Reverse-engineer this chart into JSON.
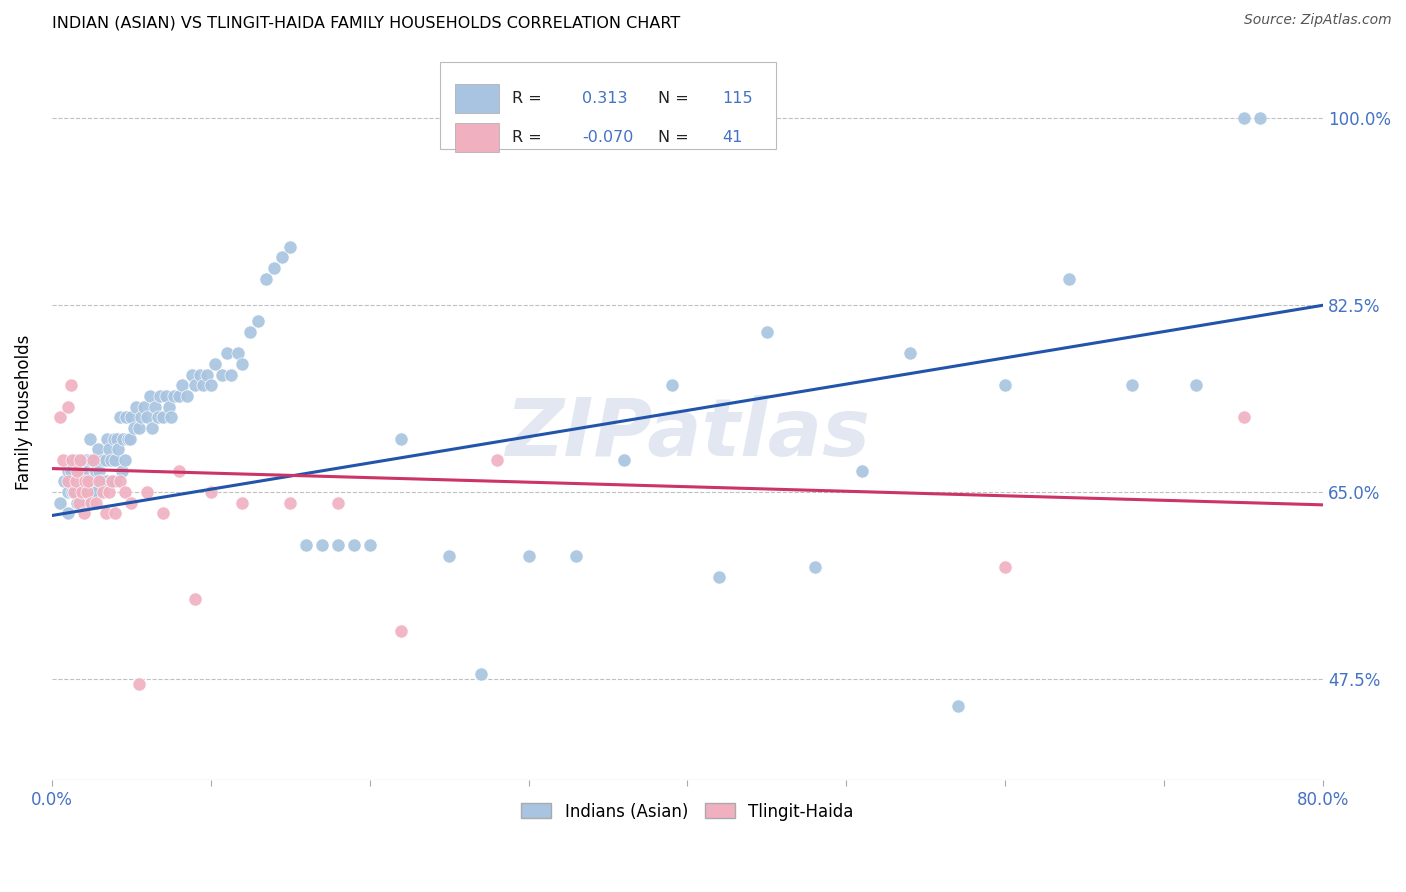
{
  "title": "INDIAN (ASIAN) VS TLINGIT-HAIDA FAMILY HOUSEHOLDS CORRELATION CHART",
  "source": "Source: ZipAtlas.com",
  "ylabel": "Family Households",
  "xlim": [
    0.0,
    0.8
  ],
  "ylim": [
    0.38,
    1.07
  ],
  "xtick_positions": [
    0.0,
    0.1,
    0.2,
    0.3,
    0.4,
    0.5,
    0.6,
    0.7,
    0.8
  ],
  "xticklabels": [
    "0.0%",
    "",
    "",
    "",
    "",
    "",
    "",
    "",
    "80.0%"
  ],
  "ytick_values": [
    0.475,
    0.65,
    0.825,
    1.0
  ],
  "ytick_labels": [
    "47.5%",
    "65.0%",
    "82.5%",
    "100.0%"
  ],
  "blue_R": 0.313,
  "blue_N": 115,
  "pink_R": -0.07,
  "pink_N": 41,
  "blue_color": "#a8c4e0",
  "pink_color": "#f0b0c0",
  "blue_line_color": "#2255aa",
  "pink_line_color": "#cc3366",
  "legend_label_blue": "Indians (Asian)",
  "legend_label_pink": "Tlingit-Haida",
  "watermark": "ZIPatlas",
  "blue_line_x": [
    0.0,
    0.8
  ],
  "blue_line_y": [
    0.628,
    0.825
  ],
  "pink_line_x": [
    0.0,
    0.8
  ],
  "pink_line_y": [
    0.672,
    0.638
  ],
  "blue_scatter_x": [
    0.005,
    0.008,
    0.01,
    0.01,
    0.01,
    0.012,
    0.013,
    0.014,
    0.015,
    0.015,
    0.016,
    0.017,
    0.018,
    0.018,
    0.019,
    0.02,
    0.02,
    0.021,
    0.022,
    0.022,
    0.023,
    0.023,
    0.024,
    0.025,
    0.025,
    0.026,
    0.027,
    0.027,
    0.028,
    0.028,
    0.029,
    0.03,
    0.031,
    0.032,
    0.033,
    0.034,
    0.035,
    0.035,
    0.036,
    0.037,
    0.038,
    0.039,
    0.04,
    0.04,
    0.041,
    0.042,
    0.043,
    0.044,
    0.045,
    0.046,
    0.047,
    0.048,
    0.049,
    0.05,
    0.052,
    0.053,
    0.055,
    0.056,
    0.058,
    0.06,
    0.062,
    0.063,
    0.065,
    0.067,
    0.068,
    0.07,
    0.072,
    0.074,
    0.075,
    0.077,
    0.08,
    0.082,
    0.085,
    0.088,
    0.09,
    0.093,
    0.095,
    0.098,
    0.1,
    0.103,
    0.107,
    0.11,
    0.113,
    0.117,
    0.12,
    0.125,
    0.13,
    0.135,
    0.14,
    0.145,
    0.15,
    0.16,
    0.17,
    0.18,
    0.19,
    0.2,
    0.22,
    0.25,
    0.27,
    0.3,
    0.33,
    0.36,
    0.39,
    0.42,
    0.45,
    0.48,
    0.51,
    0.54,
    0.57,
    0.6,
    0.64,
    0.68,
    0.72,
    0.75,
    0.76
  ],
  "blue_scatter_y": [
    0.64,
    0.66,
    0.65,
    0.67,
    0.63,
    0.67,
    0.65,
    0.65,
    0.65,
    0.68,
    0.64,
    0.67,
    0.65,
    0.67,
    0.66,
    0.65,
    0.68,
    0.66,
    0.68,
    0.64,
    0.67,
    0.65,
    0.7,
    0.66,
    0.68,
    0.65,
    0.67,
    0.68,
    0.67,
    0.65,
    0.69,
    0.67,
    0.66,
    0.68,
    0.66,
    0.68,
    0.7,
    0.66,
    0.69,
    0.68,
    0.66,
    0.7,
    0.68,
    0.66,
    0.7,
    0.69,
    0.72,
    0.67,
    0.7,
    0.68,
    0.72,
    0.7,
    0.7,
    0.72,
    0.71,
    0.73,
    0.71,
    0.72,
    0.73,
    0.72,
    0.74,
    0.71,
    0.73,
    0.72,
    0.74,
    0.72,
    0.74,
    0.73,
    0.72,
    0.74,
    0.74,
    0.75,
    0.74,
    0.76,
    0.75,
    0.76,
    0.75,
    0.76,
    0.75,
    0.77,
    0.76,
    0.78,
    0.76,
    0.78,
    0.77,
    0.8,
    0.81,
    0.85,
    0.86,
    0.87,
    0.88,
    0.6,
    0.6,
    0.6,
    0.6,
    0.6,
    0.7,
    0.59,
    0.48,
    0.59,
    0.59,
    0.68,
    0.75,
    0.57,
    0.8,
    0.58,
    0.67,
    0.78,
    0.45,
    0.75,
    0.85,
    0.75,
    0.75,
    1.0,
    1.0
  ],
  "pink_scatter_x": [
    0.005,
    0.007,
    0.01,
    0.01,
    0.012,
    0.013,
    0.014,
    0.015,
    0.016,
    0.017,
    0.018,
    0.019,
    0.02,
    0.021,
    0.022,
    0.023,
    0.025,
    0.026,
    0.028,
    0.03,
    0.032,
    0.034,
    0.036,
    0.038,
    0.04,
    0.043,
    0.046,
    0.05,
    0.055,
    0.06,
    0.07,
    0.08,
    0.09,
    0.1,
    0.12,
    0.15,
    0.18,
    0.22,
    0.28,
    0.6,
    0.75
  ],
  "pink_scatter_y": [
    0.72,
    0.68,
    0.73,
    0.66,
    0.75,
    0.68,
    0.65,
    0.66,
    0.67,
    0.64,
    0.68,
    0.65,
    0.63,
    0.66,
    0.65,
    0.66,
    0.64,
    0.68,
    0.64,
    0.66,
    0.65,
    0.63,
    0.65,
    0.66,
    0.63,
    0.66,
    0.65,
    0.64,
    0.47,
    0.65,
    0.63,
    0.67,
    0.55,
    0.65,
    0.64,
    0.64,
    0.64,
    0.52,
    0.68,
    0.58,
    0.72
  ]
}
